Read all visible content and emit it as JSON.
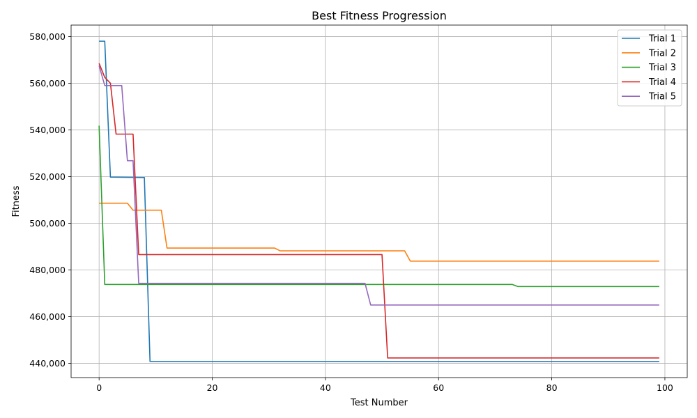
{
  "chart_data": {
    "type": "line",
    "title": "Best Fitness Progression",
    "xlabel": "Test Number",
    "ylabel": "Fitness",
    "xlim": [
      -4.95,
      103.95
    ],
    "ylim": [
      433900,
      584900
    ],
    "xticks": [
      0,
      20,
      40,
      60,
      80,
      100
    ],
    "yticks": [
      440000,
      460000,
      480000,
      500000,
      520000,
      540000,
      560000,
      580000
    ],
    "ytick_labels": [
      "440,000",
      "460,000",
      "480,000",
      "500,000",
      "520,000",
      "540,000",
      "560,000",
      "580,000"
    ],
    "grid": true,
    "legend_position": "top-right",
    "series": [
      {
        "name": "Trial 1",
        "color": "#1f77b4",
        "points": [
          [
            0,
            578000
          ],
          [
            1,
            578000
          ],
          [
            2,
            519800
          ],
          [
            8,
            519600
          ],
          [
            9,
            440800
          ],
          [
            99,
            440800
          ]
        ]
      },
      {
        "name": "Trial 2",
        "color": "#ff7f0e",
        "points": [
          [
            0,
            508600
          ],
          [
            5,
            508600
          ],
          [
            6,
            505600
          ],
          [
            11,
            505600
          ],
          [
            12,
            489400
          ],
          [
            31,
            489400
          ],
          [
            32,
            488200
          ],
          [
            54,
            488200
          ],
          [
            55,
            483800
          ],
          [
            99,
            483800
          ]
        ]
      },
      {
        "name": "Trial 3",
        "color": "#2ca02c",
        "points": [
          [
            0,
            541800
          ],
          [
            1,
            473800
          ],
          [
            73,
            473800
          ],
          [
            74,
            472900
          ],
          [
            99,
            472900
          ]
        ]
      },
      {
        "name": "Trial 4",
        "color": "#d62728",
        "points": [
          [
            0,
            568500
          ],
          [
            1,
            562500
          ],
          [
            2,
            560000
          ],
          [
            3,
            538200
          ],
          [
            6,
            538200
          ],
          [
            7,
            486600
          ],
          [
            50,
            486600
          ],
          [
            51,
            442300
          ],
          [
            99,
            442300
          ]
        ]
      },
      {
        "name": "Trial 5",
        "color": "#9467bd",
        "points": [
          [
            0,
            567500
          ],
          [
            1,
            559000
          ],
          [
            4,
            559000
          ],
          [
            5,
            526800
          ],
          [
            6,
            526800
          ],
          [
            7,
            474300
          ],
          [
            47,
            474300
          ],
          [
            48,
            465000
          ],
          [
            99,
            465000
          ]
        ]
      }
    ]
  }
}
